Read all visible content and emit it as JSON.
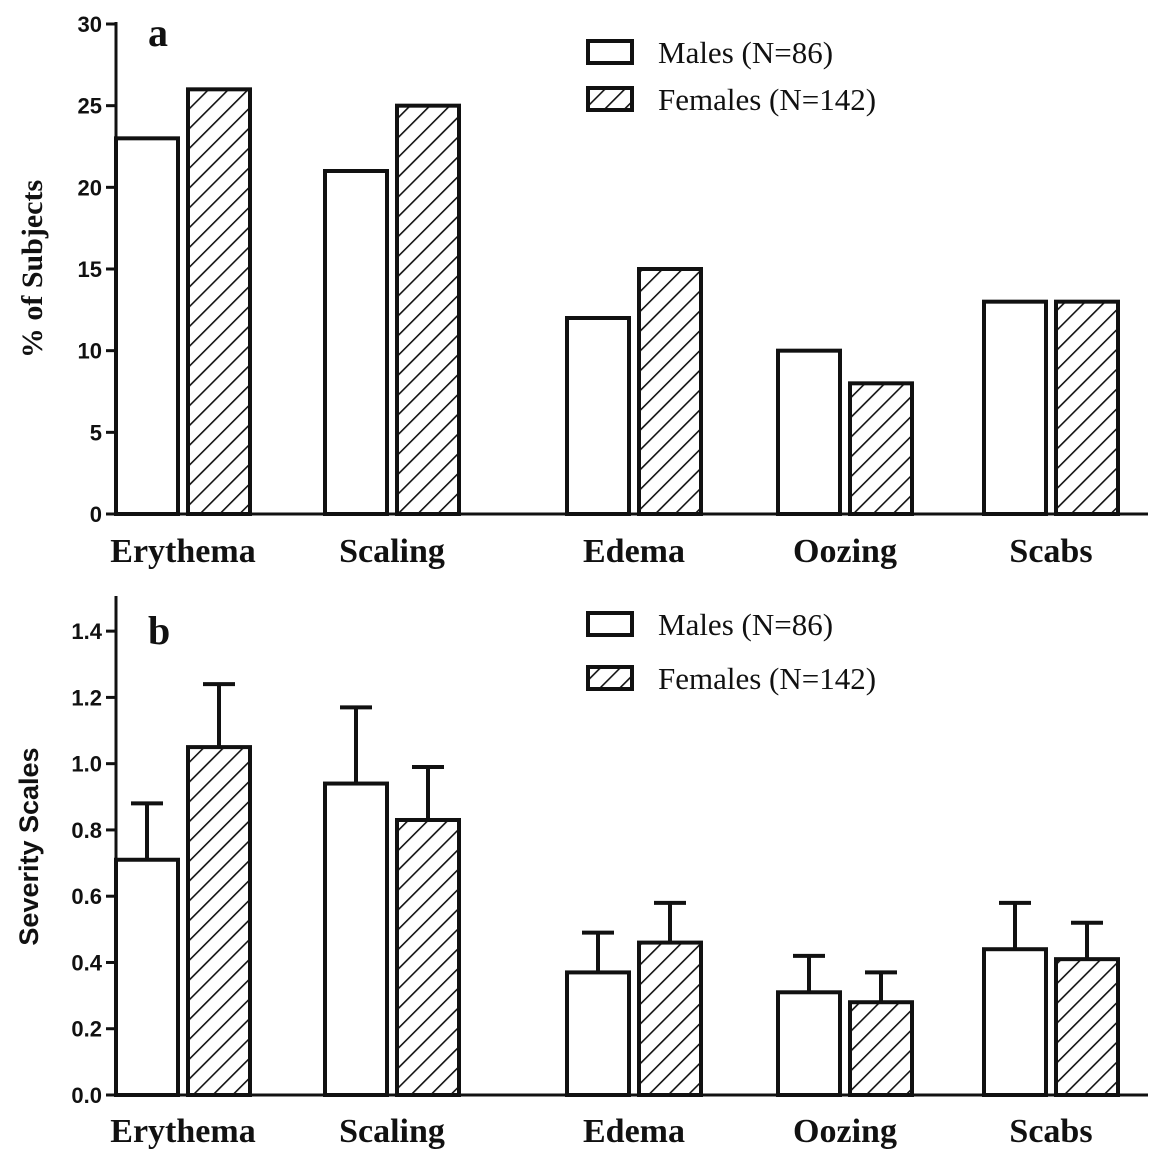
{
  "chart_data": [
    {
      "type": "bar",
      "panel_label": "a",
      "ylabel": "% of Subjects",
      "xlabel": "",
      "ylim": [
        0,
        30
      ],
      "yticks": [
        0,
        5,
        10,
        15,
        20,
        25,
        30
      ],
      "categories": [
        "Erythema",
        "Scaling",
        "Edema",
        "Oozing",
        "Scabs"
      ],
      "series": [
        {
          "name": "Males (N=86)",
          "pattern": "open",
          "values": [
            23,
            21,
            12,
            10,
            13
          ]
        },
        {
          "name": "Females (N=142)",
          "pattern": "hatched",
          "values": [
            26,
            25,
            15,
            8,
            13
          ]
        }
      ],
      "legend_position": "top-right",
      "grid": false
    },
    {
      "type": "bar",
      "panel_label": "b",
      "ylabel": "Severity Scales",
      "xlabel": "",
      "ylim": [
        0,
        1.5
      ],
      "yticks": [
        "0.0",
        "0.2",
        "0.4",
        "0.6",
        "0.8",
        "1.0",
        "1.2",
        "1.4"
      ],
      "categories": [
        "Erythema",
        "Scaling",
        "Edema",
        "Oozing",
        "Scabs"
      ],
      "series": [
        {
          "name": "Males (N=86)",
          "pattern": "open",
          "values": [
            0.71,
            0.94,
            0.37,
            0.31,
            0.44
          ],
          "error_upper": [
            0.88,
            1.17,
            0.49,
            0.42,
            0.58
          ]
        },
        {
          "name": "Females (N=142)",
          "pattern": "hatched",
          "values": [
            1.05,
            0.83,
            0.46,
            0.28,
            0.41
          ],
          "error_upper": [
            1.24,
            0.99,
            0.58,
            0.37,
            0.52
          ]
        }
      ],
      "legend_position": "top-right",
      "grid": false
    }
  ]
}
